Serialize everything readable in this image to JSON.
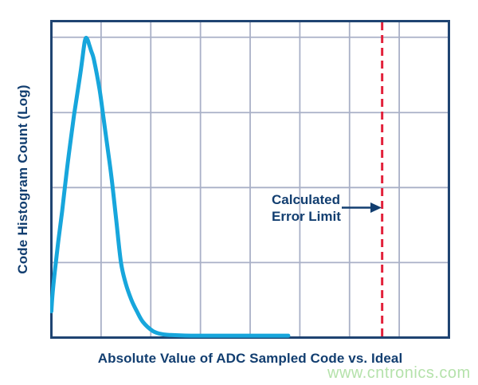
{
  "figure": {
    "watermark": "www.cntronics.com"
  },
  "theme": {
    "background": "#ffffff",
    "plot_border": "#1f4472",
    "gridline": "#a9b0c7",
    "curve": "#17a6dc",
    "label_text": "#123e70",
    "error_line_red": "#e2203a",
    "watermark_green": "#b5e2ab"
  },
  "chart_data": {
    "type": "line",
    "title": "",
    "xlabel": "Absolute Value of ADC Sampled Code vs. Ideal",
    "ylabel": "Code Histogram Count (Log)",
    "x_axis": {
      "tick_labels": [],
      "grid_divisions": 8
    },
    "y_axis": {
      "scale": "log",
      "tick_labels": [],
      "gridline_count": 4
    },
    "legend": "none",
    "coords_note": "points are [x,y] normalized to the plot area; x: 0=left axis, 1=right axis; y: 0=bottom axis, 1=top axis",
    "series": [
      {
        "name": "Code histogram count",
        "points": [
          [
            0.0,
            0.083
          ],
          [
            0.003,
            0.138
          ],
          [
            0.009,
            0.213
          ],
          [
            0.017,
            0.301
          ],
          [
            0.027,
            0.399
          ],
          [
            0.037,
            0.509
          ],
          [
            0.047,
            0.61
          ],
          [
            0.057,
            0.703
          ],
          [
            0.067,
            0.785
          ],
          [
            0.075,
            0.853
          ],
          [
            0.081,
            0.911
          ],
          [
            0.084,
            0.936
          ],
          [
            0.087,
            0.947
          ],
          [
            0.091,
            0.941
          ],
          [
            0.095,
            0.926
          ],
          [
            0.1,
            0.906
          ],
          [
            0.107,
            0.878
          ],
          [
            0.121,
            0.785
          ],
          [
            0.131,
            0.695
          ],
          [
            0.141,
            0.602
          ],
          [
            0.151,
            0.509
          ],
          [
            0.163,
            0.374
          ],
          [
            0.175,
            0.238
          ],
          [
            0.187,
            0.171
          ],
          [
            0.201,
            0.12
          ],
          [
            0.215,
            0.083
          ],
          [
            0.231,
            0.048
          ],
          [
            0.255,
            0.021
          ],
          [
            0.277,
            0.011
          ],
          [
            0.301,
            0.008
          ],
          [
            0.351,
            0.006
          ],
          [
            0.451,
            0.006
          ],
          [
            0.596,
            0.006
          ]
        ]
      }
    ],
    "error_limit_line": {
      "label": "Calculated Error Limit",
      "label_lines": [
        "Calculated",
        "Error Limit"
      ],
      "x": 0.832,
      "style": "dashed"
    },
    "grid": {
      "vertical_fracs": [
        0.125,
        0.25,
        0.375,
        0.5,
        0.625,
        0.75,
        0.875
      ],
      "horizontal_fracs_from_bottom": [
        0.237,
        0.474,
        0.711,
        0.949
      ]
    }
  }
}
